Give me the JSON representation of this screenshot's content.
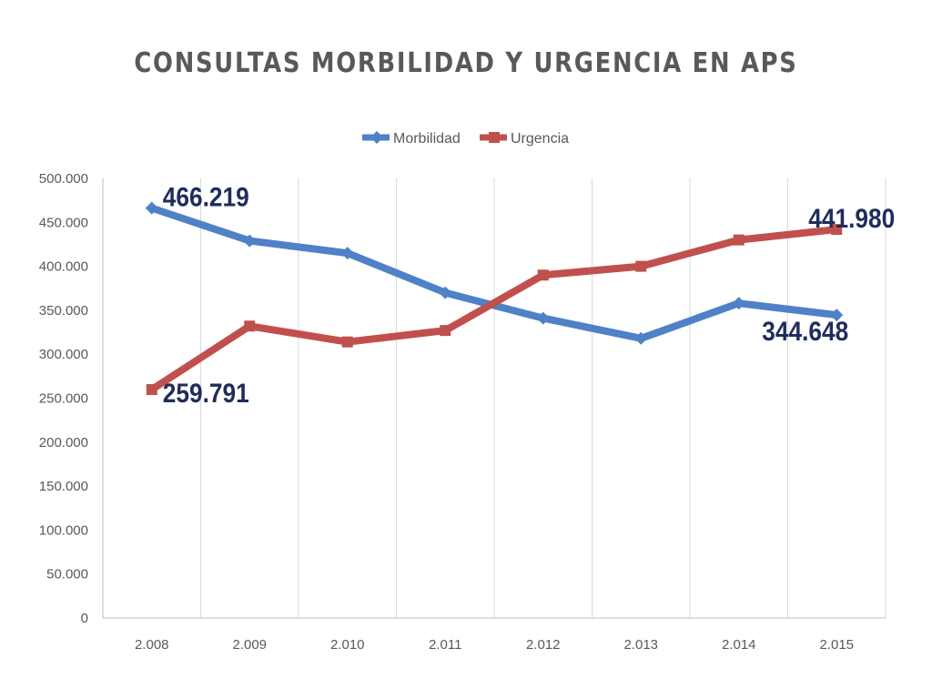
{
  "chart_data": {
    "type": "line",
    "title": "CONSULTAS MORBILIDAD Y URGENCIA EN APS",
    "categories": [
      "2.008",
      "2.009",
      "2.010",
      "2.011",
      "2.012",
      "2.013",
      "2.014",
      "2.015"
    ],
    "ylim": [
      0,
      500000
    ],
    "yticks": [
      0,
      50000,
      100000,
      150000,
      200000,
      250000,
      300000,
      350000,
      400000,
      450000,
      500000
    ],
    "ytick_labels": [
      "0",
      "50.000",
      "100.000",
      "150.000",
      "200.000",
      "250.000",
      "300.000",
      "350.000",
      "400.000",
      "450.000",
      "500.000"
    ],
    "grid": "vertical",
    "legend": "top",
    "series": [
      {
        "name": "Morbilidad",
        "color": "#4f81c7",
        "marker": "diamond",
        "values": [
          466219,
          429000,
          415000,
          370000,
          341000,
          318000,
          358000,
          344648
        ]
      },
      {
        "name": "Urgencia",
        "color": "#c0504d",
        "marker": "square",
        "values": [
          259791,
          332000,
          314000,
          327000,
          390000,
          400000,
          430000,
          441980
        ]
      }
    ],
    "annotations": [
      {
        "series": 0,
        "index": 0,
        "text": "466.219"
      },
      {
        "series": 0,
        "index": 7,
        "text": "344.648"
      },
      {
        "series": 1,
        "index": 0,
        "text": "259.791"
      },
      {
        "series": 1,
        "index": 7,
        "text": "441.980"
      }
    ]
  }
}
